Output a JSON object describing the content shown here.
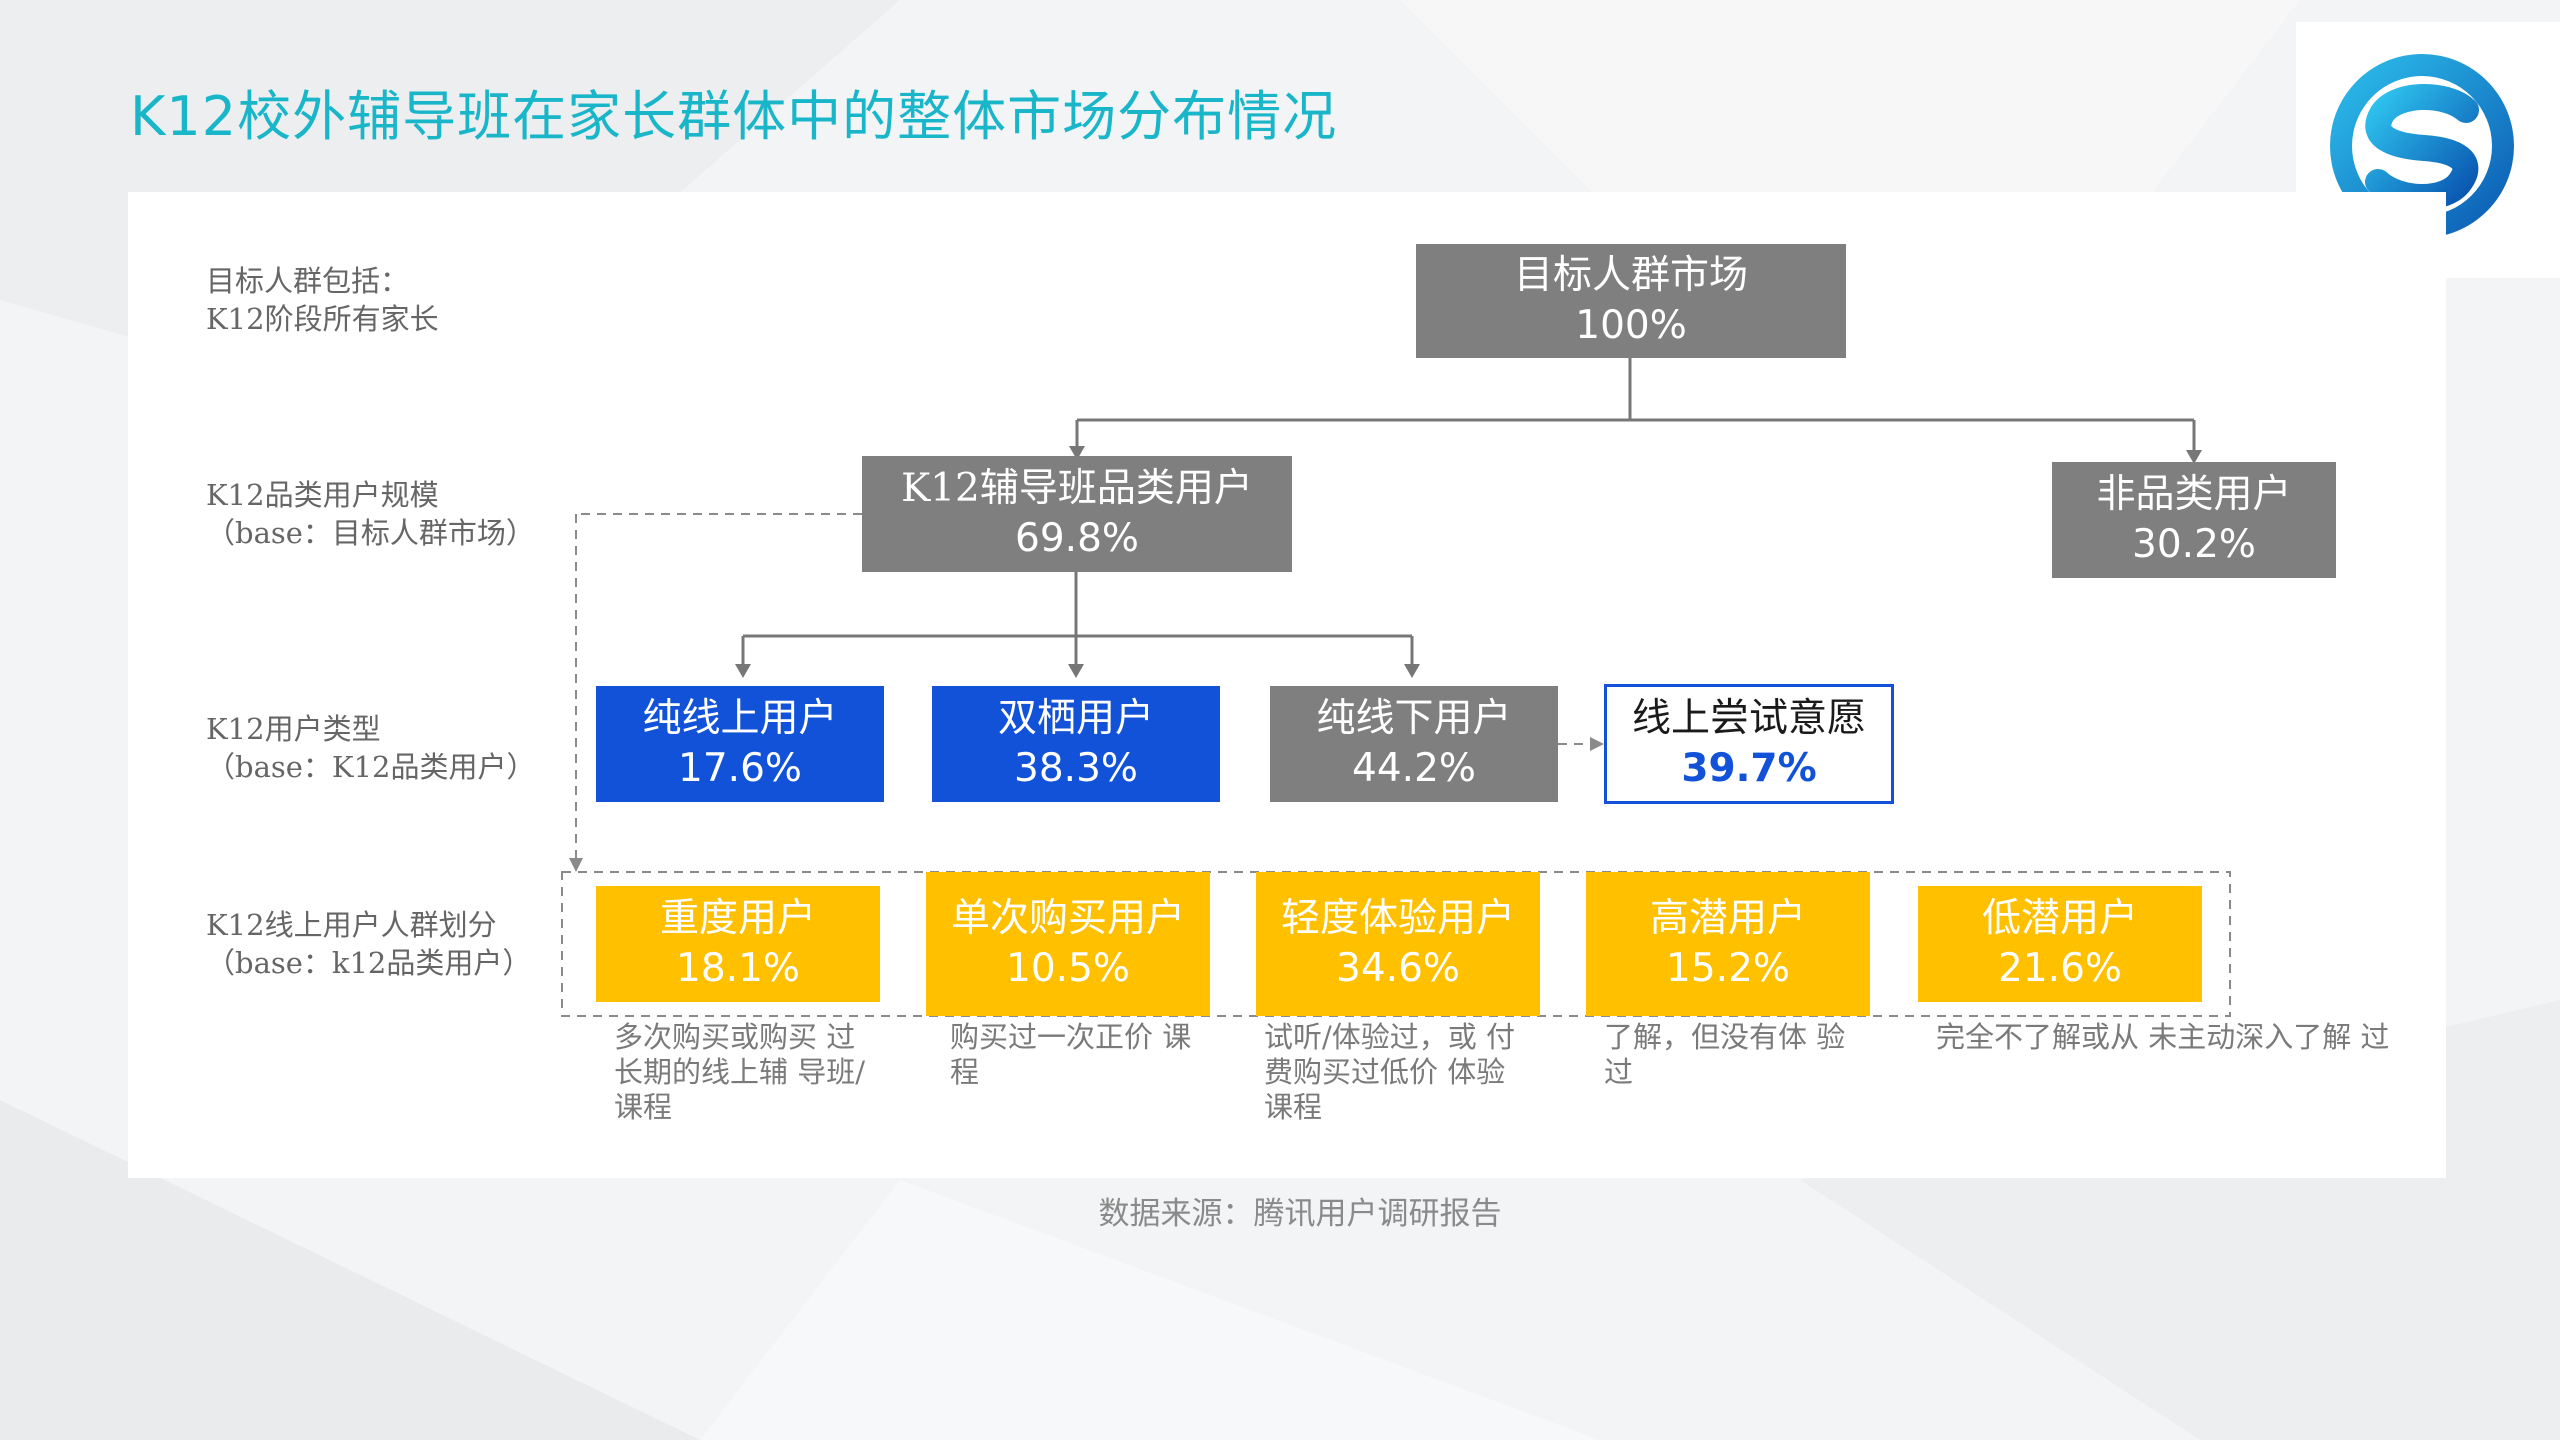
{
  "title": "K12校外辅导班在家长群体中的整体市场分布情况",
  "colors": {
    "title": "#19b6c9",
    "gray": "#7f7f7f",
    "blue": "#1152d9",
    "gold": "#ffc000"
  },
  "left_labels": [
    {
      "line1": "目标人群包括：",
      "line2": "K12阶段所有家长"
    },
    {
      "line1": "K12品类用户规模",
      "line2": "（base：目标人群市场）"
    },
    {
      "line1": "K12用户类型",
      "line2": "（base：K12品类用户）"
    },
    {
      "line1": "K12线上用户人群划分",
      "line2": "（base：k12品类用户）"
    }
  ],
  "root": {
    "label": "目标人群市场",
    "value": "100%"
  },
  "level2": [
    {
      "label": "K12辅导班品类用户",
      "value": "69.8%"
    },
    {
      "label": "非品类用户",
      "value": "30.2%"
    }
  ],
  "level3": [
    {
      "label": "纯线上用户",
      "value": "17.6%"
    },
    {
      "label": "双栖用户",
      "value": "38.3%"
    },
    {
      "label": "纯线下用户",
      "value": "44.2%"
    },
    {
      "label": "线上尝试意愿",
      "value": "39.7%"
    }
  ],
  "level4": [
    {
      "label": "重度用户",
      "value": "18.1%",
      "desc": [
        "多次购买或购买 过",
        "长期的线上辅 导班/",
        "课程"
      ]
    },
    {
      "label": "单次购买用户",
      "value": "10.5%",
      "desc": [
        "购买过一次正价 课",
        "程"
      ]
    },
    {
      "label": "轻度体验用户",
      "value": "34.6%",
      "desc": [
        "试听/体验过，或 付",
        "费购买过低价 体验",
        "课程"
      ]
    },
    {
      "label": "高潜用户",
      "value": "15.2%",
      "desc": [
        "了解，但没有体 验",
        "过"
      ]
    },
    {
      "label": "低潜用户",
      "value": "21.6%",
      "desc": [
        "完全不了解或从 未主动深入了解 过"
      ]
    }
  ],
  "source": "数据来源：腾讯用户调研报告",
  "icons": {
    "logo": "s-logo-icon"
  }
}
